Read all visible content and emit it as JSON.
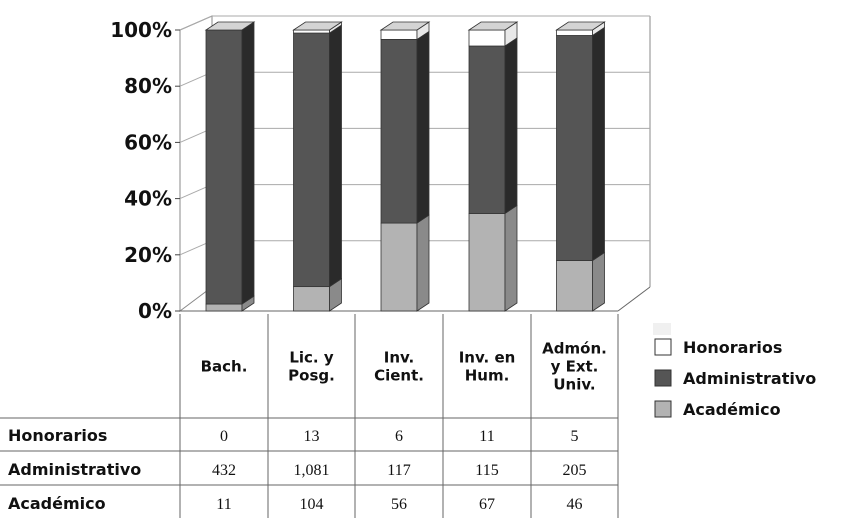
{
  "chart_data": {
    "type": "bar",
    "stacked": "percent",
    "categories": [
      "Bach.",
      "Lic. y Posg.",
      "Inv. Cient.",
      "Inv. en Hum.",
      "Admón. y Ext. Univ."
    ],
    "category_lines": [
      [
        "Bach."
      ],
      [
        "Lic. y",
        "Posg."
      ],
      [
        "Inv.",
        "Cient."
      ],
      [
        "Inv. en",
        "Hum."
      ],
      [
        "Admón.",
        "y Ext.",
        "Univ."
      ]
    ],
    "series": [
      {
        "name": "Académico",
        "values": [
          11,
          104,
          56,
          67,
          46
        ],
        "labels": [
          "11",
          "104",
          "56",
          "67",
          "46"
        ],
        "color": "#b3b3b3"
      },
      {
        "name": "Administrativo",
        "values": [
          432,
          1081,
          117,
          115,
          205
        ],
        "labels": [
          "432",
          "1,081",
          "117",
          "115",
          "205"
        ],
        "color": "#555555"
      },
      {
        "name": "Honorarios",
        "values": [
          0,
          13,
          6,
          11,
          5
        ],
        "labels": [
          "0",
          "13",
          "6",
          "11",
          "5"
        ],
        "color": "#ffffff"
      }
    ],
    "table_rows": [
      "Honorarios",
      "Administrativo",
      "Académico"
    ],
    "legend": [
      "Honorarios",
      "Administrativo",
      "Académico"
    ],
    "legend_position": "right",
    "yticks": [
      "0%",
      "20%",
      "40%",
      "60%",
      "80%",
      "100%"
    ],
    "ylim": [
      0,
      100
    ],
    "grid": true
  }
}
